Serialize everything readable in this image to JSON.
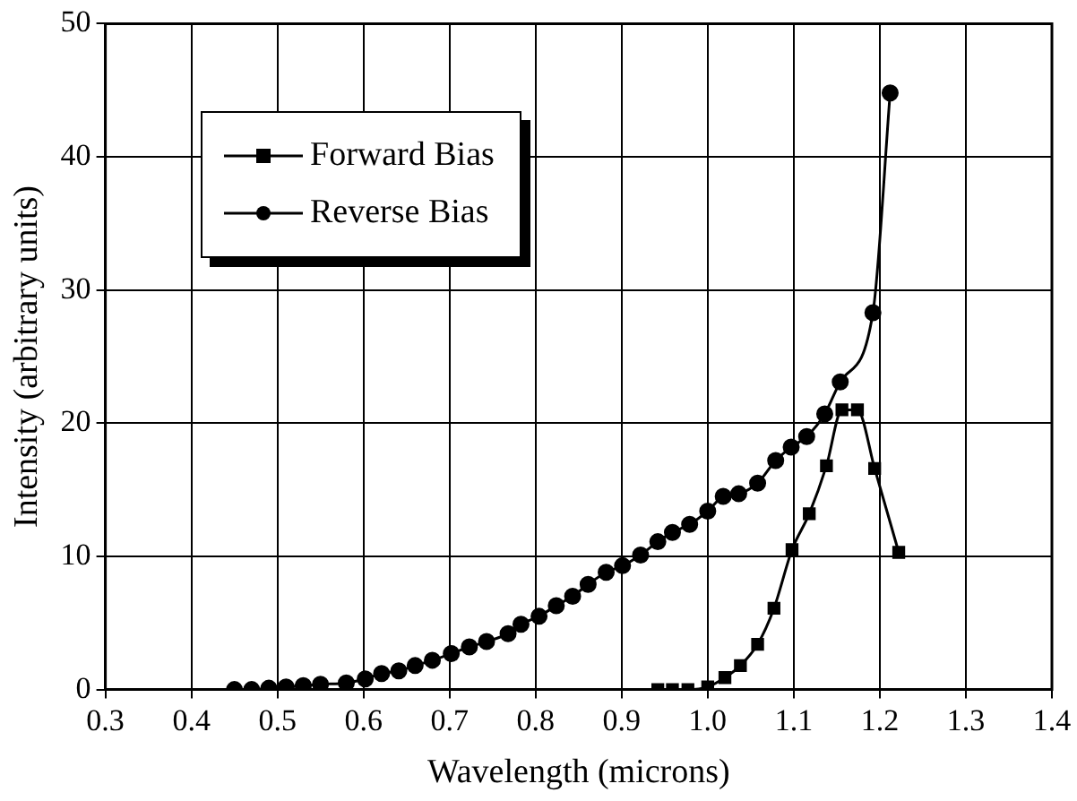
{
  "chart_data": {
    "type": "line",
    "xlabel": "Wavelength (microns)",
    "ylabel": "Intensity (arbitrary units)",
    "xlim": [
      0.3,
      1.4
    ],
    "xticks": [
      0.3,
      0.4,
      0.5,
      0.6,
      0.7,
      0.8,
      0.9,
      {
        "value": 1,
        "label": "1.0"
      },
      1.1,
      1.2,
      1.3,
      1.4
    ],
    "ylim": [
      0,
      50
    ],
    "yticks": [
      0,
      10,
      20,
      30,
      40,
      50
    ],
    "grid": true,
    "legend": "top left",
    "line_style": "solid",
    "series": [
      {
        "name": "Forward Bias",
        "color": "#000000",
        "marker": "square",
        "x": [
          0.942,
          0.959,
          0.977,
          1.0,
          1.02,
          1.038,
          1.058,
          1.077,
          1.098,
          1.118,
          1.138,
          1.156,
          1.174,
          1.194,
          1.222
        ],
        "values": [
          0,
          0,
          0,
          0.2,
          0.9,
          1.8,
          3.4,
          6.1,
          10.5,
          13.2,
          16.8,
          21,
          21,
          16.6,
          10.3
        ]
      },
      {
        "name": "Reverse Bias",
        "color": "#000000",
        "marker": "circle",
        "x": [
          0.45,
          0.47,
          0.49,
          0.51,
          0.53,
          0.55,
          0.58,
          0.602,
          0.621,
          0.641,
          0.66,
          0.68,
          0.702,
          0.723,
          0.743,
          0.768,
          0.783,
          0.804,
          0.824,
          0.843,
          0.861,
          0.882,
          0.901,
          0.922,
          0.942,
          0.959,
          0.979,
          1.0,
          1.018,
          1.036,
          1.058,
          1.079,
          1.097,
          1.115,
          1.136,
          1.154,
          1.192,
          1.212
        ],
        "values": [
          0,
          0,
          0.1,
          0.2,
          0.3,
          0.4,
          0.5,
          0.8,
          1.2,
          1.4,
          1.8,
          2.2,
          2.7,
          3.2,
          3.6,
          4.2,
          4.9,
          5.5,
          6.3,
          7.0,
          7.9,
          8.8,
          9.3,
          10.1,
          11.1,
          11.8,
          12.4,
          13.4,
          14.5,
          14.7,
          15.5,
          17.2,
          18.2,
          19.0,
          20.7,
          23.1,
          28.3,
          44.8
        ]
      }
    ]
  }
}
